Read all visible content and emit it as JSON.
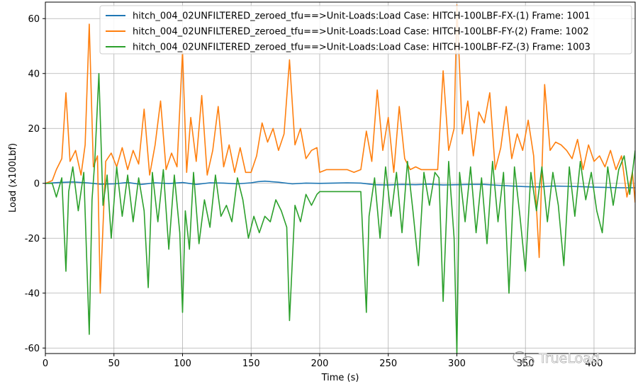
{
  "chart_data": {
    "type": "line",
    "title": "",
    "xlabel": "Time (s)",
    "ylabel": "Load (x100Lbf)",
    "xlim": [
      0,
      430
    ],
    "ylim": [
      -62,
      66
    ],
    "xticks": [
      0,
      50,
      100,
      150,
      200,
      250,
      300,
      350,
      400
    ],
    "yticks": [
      -60,
      -40,
      -20,
      0,
      20,
      40,
      60
    ],
    "grid": true,
    "legend_position": "top-right",
    "series": [
      {
        "name": "hitch_004_02UNFILTERED_zeroed_tfu==>Unit-Loads:Load Case: HITCH-100LBF-FX-(1) Frame: 1001",
        "color": "#1f77b4",
        "x": [
          0,
          10,
          20,
          30,
          40,
          50,
          60,
          70,
          80,
          90,
          100,
          110,
          120,
          130,
          140,
          150,
          155,
          160,
          170,
          180,
          190,
          200,
          210,
          220,
          230,
          240,
          250,
          260,
          270,
          280,
          290,
          300,
          310,
          320,
          330,
          340,
          350,
          360,
          370,
          380,
          390,
          400,
          410,
          420,
          430
        ],
        "y": [
          0,
          0.3,
          0.5,
          0.2,
          -0.3,
          -0.2,
          0.3,
          -0.4,
          0.2,
          -0.1,
          0.3,
          -0.4,
          0.2,
          0.1,
          -0.2,
          0.2,
          0.6,
          0.8,
          0.4,
          -0.2,
          0.1,
          0,
          0.1,
          0.2,
          0.1,
          -0.5,
          -0.6,
          -0.4,
          -0.5,
          -0.3,
          -0.6,
          -0.5,
          -0.4,
          -0.4,
          -0.7,
          -1.0,
          -1.2,
          -1.3,
          -1.0,
          -1.1,
          -1.2,
          -1.4,
          -1.5,
          -1.6,
          -1.6
        ]
      },
      {
        "name": "hitch_004_02UNFILTERED_zeroed_tfu==>Unit-Loads:Load Case: HITCH-100LBF-FY-(2) Frame: 1002",
        "color": "#ff7f0e",
        "x": [
          0,
          5,
          8,
          12,
          15,
          18,
          22,
          26,
          29,
          32,
          35,
          38,
          40,
          44,
          48,
          52,
          56,
          60,
          64,
          68,
          72,
          76,
          80,
          84,
          88,
          92,
          96,
          100,
          103,
          106,
          110,
          114,
          118,
          122,
          126,
          130,
          134,
          138,
          142,
          146,
          150,
          154,
          158,
          162,
          166,
          170,
          174,
          178,
          182,
          186,
          190,
          194,
          198,
          200,
          205,
          210,
          215,
          220,
          225,
          230,
          234,
          238,
          242,
          246,
          250,
          254,
          258,
          262,
          266,
          270,
          274,
          278,
          282,
          286,
          290,
          294,
          298,
          300,
          304,
          308,
          312,
          316,
          320,
          324,
          328,
          332,
          336,
          340,
          344,
          348,
          352,
          356,
          360,
          364,
          368,
          372,
          376,
          380,
          384,
          388,
          392,
          396,
          400,
          404,
          408,
          412,
          416,
          420,
          424,
          428,
          430
        ],
        "y": [
          0,
          1,
          5,
          9,
          33,
          8,
          12,
          3,
          14,
          58,
          6,
          10,
          -40,
          8,
          11,
          6,
          13,
          5,
          12,
          7,
          27,
          3,
          14,
          30,
          5,
          11,
          6,
          48,
          4,
          24,
          8,
          32,
          3,
          12,
          28,
          6,
          14,
          4,
          13,
          4,
          4,
          10,
          22,
          15,
          20,
          12,
          18,
          45,
          14,
          20,
          9,
          12,
          13,
          4,
          5,
          5,
          5,
          5,
          4,
          5,
          19,
          8,
          34,
          12,
          24,
          4,
          28,
          9,
          5,
          6,
          5,
          5,
          5,
          5,
          41,
          12,
          20,
          65,
          18,
          30,
          10,
          26,
          22,
          33,
          5,
          13,
          28,
          9,
          18,
          12,
          23,
          10,
          -27,
          36,
          12,
          15,
          14,
          12,
          9,
          16,
          5,
          14,
          8,
          10,
          6,
          12,
          5,
          10,
          -5,
          4,
          -7
        ]
      },
      {
        "name": "hitch_004_02UNFILTERED_zeroed_tfu==>Unit-Loads:Load Case: HITCH-100LBF-FZ-(3) Frame: 1003",
        "color": "#2ca02c",
        "x": [
          0,
          5,
          8,
          12,
          15,
          17,
          20,
          24,
          28,
          32,
          34,
          36,
          39,
          42,
          45,
          48,
          52,
          56,
          60,
          64,
          68,
          72,
          75,
          78,
          82,
          86,
          90,
          94,
          98,
          100,
          102,
          105,
          108,
          112,
          116,
          120,
          124,
          128,
          132,
          136,
          140,
          144,
          148,
          152,
          156,
          160,
          164,
          168,
          172,
          176,
          178,
          182,
          186,
          190,
          194,
          198,
          200,
          205,
          210,
          215,
          220,
          225,
          230,
          234,
          236,
          240,
          244,
          248,
          252,
          256,
          260,
          264,
          268,
          272,
          276,
          280,
          284,
          287,
          290,
          294,
          298,
          300,
          302,
          306,
          310,
          314,
          318,
          322,
          326,
          330,
          334,
          338,
          342,
          346,
          350,
          354,
          358,
          362,
          366,
          370,
          374,
          378,
          382,
          386,
          390,
          394,
          398,
          402,
          406,
          410,
          414,
          418,
          422,
          426,
          430
        ],
        "y": [
          0,
          0,
          -5,
          2,
          -32,
          -3,
          6,
          -10,
          4,
          -55,
          -6,
          8,
          40,
          -8,
          3,
          -20,
          6,
          -12,
          3,
          -14,
          2,
          -10,
          -38,
          4,
          -14,
          5,
          -24,
          3,
          -18,
          -47,
          -10,
          -24,
          4,
          -22,
          -6,
          -16,
          3,
          -12,
          -8,
          -14,
          2,
          -6,
          -20,
          -12,
          -18,
          -12,
          -14,
          -6,
          -10,
          -16,
          -50,
          -8,
          -14,
          -4,
          -8,
          -4,
          -3,
          -3,
          -3,
          -3,
          -3,
          -3,
          -3,
          -47,
          -12,
          2,
          -20,
          6,
          -12,
          4,
          -18,
          8,
          -10,
          -30,
          4,
          -8,
          4,
          2,
          -43,
          8,
          -20,
          -62,
          4,
          -14,
          6,
          -18,
          2,
          -22,
          8,
          -14,
          4,
          -40,
          6,
          -12,
          -32,
          4,
          -10,
          6,
          -14,
          4,
          -8,
          -30,
          6,
          -12,
          8,
          -6,
          4,
          -10,
          -18,
          6,
          -8,
          5,
          10,
          -4,
          12
        ]
      }
    ],
    "watermark": "TrueLoad"
  }
}
